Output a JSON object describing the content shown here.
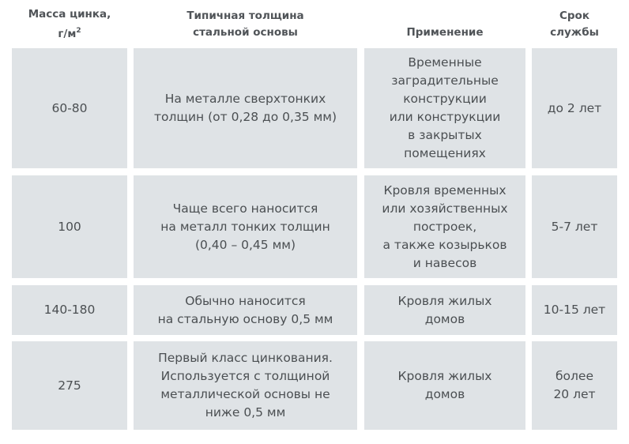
{
  "headers": {
    "mass": "Масса цинка,\nг/м",
    "mass_sup": "2",
    "thickness": "Типичная толщина\nстальной основы",
    "application": "Применение",
    "lifetime": "Срок\nслужбы"
  },
  "rows": [
    {
      "mass": "60-80",
      "thickness": "На металле сверхтонких\nтолщин (от 0,28 до 0,35 мм)",
      "application": "Временные\nзаградительные\nконструкции\nили конструкции\nв закрытых\nпомещениях",
      "lifetime": "до 2 лет"
    },
    {
      "mass": "100",
      "thickness": "Чаще всего наносится\nна металл тонких толщин\n(0,40 – 0,45 мм)",
      "application": "Кровля временных\nили хозяйственных\nпостроек,\nа также козырьков\nи навесов",
      "lifetime": "5-7 лет"
    },
    {
      "mass": "140-180",
      "thickness": "Обычно наносится\nна стальную основу 0,5 мм",
      "application": "Кровля жилых\nдомов",
      "lifetime": "10-15 лет"
    },
    {
      "mass": "275",
      "thickness": "Первый класс цинкования.\nИспользуется с толщиной\nметаллической основы не\nниже 0,5 мм",
      "application": "Кровля жилых\nдомов",
      "lifetime": "более\n20 лет"
    }
  ]
}
